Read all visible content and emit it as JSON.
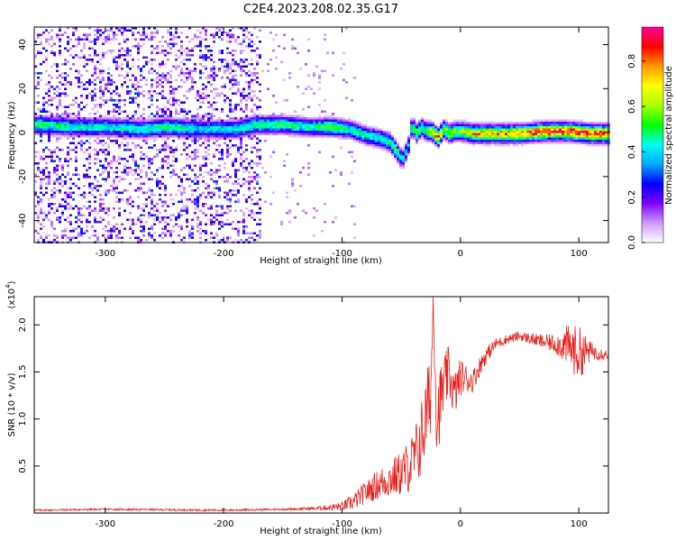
{
  "figure": {
    "title": "C2E4.2023.208.02.35.G17"
  },
  "chart_data": [
    {
      "type": "heatmap",
      "xlabel": "Height of straight line (km)",
      "ylabel": "Frequency (Hz)",
      "xlim": [
        -360,
        125
      ],
      "ylim": [
        -50,
        48
      ],
      "xticks": [
        -300,
        -200,
        -100,
        0,
        100
      ],
      "xtick_labels": [
        "-300",
        "-200",
        "-100",
        "0",
        "100"
      ],
      "yticks": [
        -40,
        -20,
        0,
        20,
        40
      ],
      "ytick_labels": [
        "-40",
        "-20",
        "0",
        "20",
        "40"
      ],
      "colorbar": {
        "label": "Normalized spectral amplitude",
        "range": [
          0,
          0.95
        ],
        "ticks": [
          0.0,
          0.2,
          0.4,
          0.6,
          0.8
        ],
        "tick_labels": [
          "0.0",
          "0.2",
          "0.4",
          "0.6",
          "0.8"
        ],
        "colormap": [
          "#ffffff",
          "#cc99ff",
          "#7f00ff",
          "#0000ff",
          "#00aaff",
          "#00ffee",
          "#00ff00",
          "#aaff00",
          "#ffff00",
          "#ff9900",
          "#ff0000",
          "#ff0099"
        ]
      },
      "ridge": {
        "x": [
          -355,
          -330,
          -300,
          -270,
          -250,
          -220,
          -190,
          -175,
          -150,
          -130,
          -110,
          -95,
          -80,
          -70,
          -60,
          -55,
          -50,
          -45,
          -42,
          -38,
          -34,
          -30,
          -25,
          -20,
          -15,
          -10,
          -5,
          0,
          10,
          30,
          50,
          70,
          90,
          110,
          125
        ],
        "freq": [
          4,
          3,
          3,
          2,
          3,
          2,
          2,
          4,
          4,
          3,
          3,
          2,
          -1,
          -2,
          -4,
          -8,
          -12,
          -6,
          4,
          0,
          3,
          1,
          1,
          -2,
          2,
          0,
          1,
          1,
          0,
          0,
          0,
          1,
          1,
          0,
          0
        ],
        "amplitude": [
          0.5,
          0.45,
          0.45,
          0.45,
          0.5,
          0.4,
          0.45,
          0.5,
          0.5,
          0.45,
          0.55,
          0.45,
          0.45,
          0.45,
          0.5,
          0.5,
          0.4,
          0.4,
          0.5,
          0.55,
          0.5,
          0.5,
          0.75,
          0.8,
          0.6,
          0.65,
          0.6,
          0.6,
          0.75,
          0.75,
          0.8,
          0.85,
          0.9,
          0.85,
          0.85
        ]
      },
      "noise_region": {
        "x_from": -360,
        "x_to": -170,
        "amplitude_range": [
          0.1,
          0.3
        ]
      }
    },
    {
      "type": "line",
      "xlabel": "Height of straight line (km)",
      "ylabel": "SNR (10 * v/v)",
      "y_multiplier": "(x10",
      "y_multiplier_exp": "4",
      "y_multiplier_close": ")",
      "xlim": [
        -360,
        125
      ],
      "ylim": [
        0,
        2.3
      ],
      "xticks": [
        -300,
        -200,
        -100,
        0,
        100
      ],
      "xtick_labels": [
        "-300",
        "-200",
        "-100",
        "0",
        "100"
      ],
      "yticks": [
        0.5,
        1.0,
        1.5,
        2.0
      ],
      "ytick_labels": [
        "0.5",
        "1.0",
        "1.5",
        "2.0"
      ],
      "line_color": "#e8231e",
      "series": [
        {
          "x": [
            -360,
            -300,
            -200,
            -150,
            -120,
            -100,
            -90,
            -80,
            -70,
            -60,
            -50,
            -45,
            -40,
            -35,
            -30,
            -25,
            -23,
            -20,
            -15,
            -10,
            -5,
            0,
            10,
            20,
            30,
            40,
            50,
            60,
            70,
            80,
            90,
            100,
            110,
            125
          ],
          "y": [
            0.03,
            0.04,
            0.03,
            0.04,
            0.05,
            0.07,
            0.12,
            0.22,
            0.3,
            0.36,
            0.42,
            0.48,
            0.55,
            0.7,
            0.95,
            1.3,
            2.28,
            1.0,
            1.3,
            1.5,
            1.25,
            1.45,
            1.4,
            1.65,
            1.8,
            1.85,
            1.88,
            1.85,
            1.82,
            1.8,
            1.78,
            1.7,
            1.72,
            1.68
          ],
          "noise": [
            0.01,
            0.01,
            0.01,
            0.01,
            0.02,
            0.05,
            0.09,
            0.12,
            0.16,
            0.2,
            0.24,
            0.28,
            0.32,
            0.38,
            0.45,
            0.45,
            0.2,
            0.45,
            0.35,
            0.28,
            0.25,
            0.2,
            0.12,
            0.1,
            0.06,
            0.05,
            0.05,
            0.06,
            0.08,
            0.1,
            0.22,
            0.3,
            0.1,
            0.05
          ]
        }
      ]
    }
  ]
}
